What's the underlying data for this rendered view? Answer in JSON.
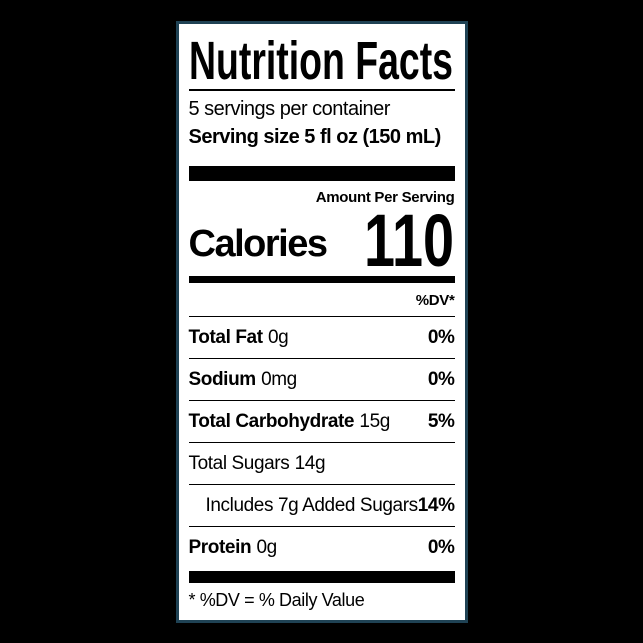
{
  "label": {
    "title": "Nutrition Facts",
    "servings_per_container": "5 servings per container",
    "serving_size": "Serving size 5 fl oz (150 mL)",
    "amount_per_serving": "Amount Per Serving",
    "calories_label": "Calories",
    "calories_value": "110",
    "daily_value_header": "%DV*",
    "rows": [
      {
        "name": "Total Fat",
        "amount": "0g",
        "dv": "0%"
      },
      {
        "name": "Sodium",
        "amount": "0mg",
        "dv": "0%"
      },
      {
        "name": "Total Carbohydrate",
        "amount": "15g",
        "dv": "5%"
      },
      {
        "name": "Total Sugars",
        "amount": "14g",
        "dv": ""
      },
      {
        "name": "Includes 7g Added Sugars",
        "amount": "",
        "dv": "14%"
      },
      {
        "name": "Protein",
        "amount": "0g",
        "dv": "0%"
      }
    ],
    "footnote": "* %DV = % Daily Value"
  },
  "colors": {
    "page_background": "#000000",
    "label_background": "#ffffff",
    "label_border": "#1f4254",
    "text": "#000000"
  }
}
